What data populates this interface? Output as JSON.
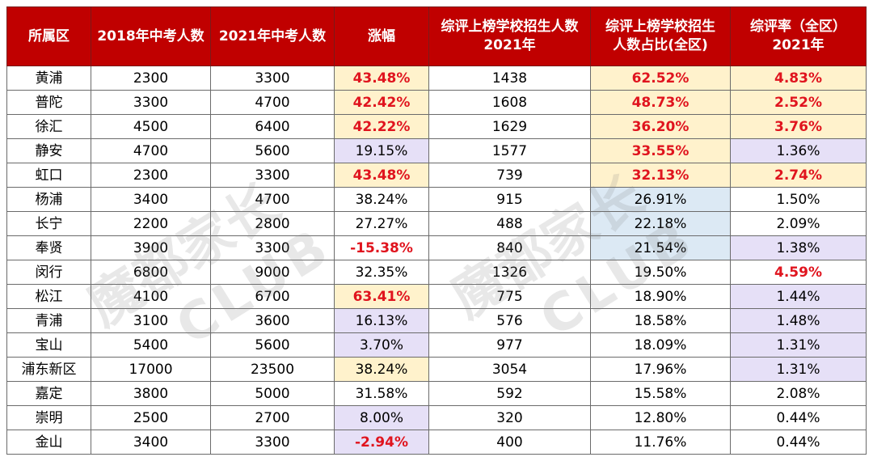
{
  "headers": [
    "所属区",
    "2018年中考人数",
    "2021年中考人数",
    "涨幅",
    "综评上榜学校招生人数\n2021年",
    "综评上榜学校招生\n人数占比(全区)",
    "综评率（全区）\n2021年"
  ],
  "rows": [
    {
      "district": "黄浦",
      "y2018": "2300",
      "y2021": "3300",
      "growth": "43.48%",
      "admit": "1438",
      "share": "62.52%",
      "rate": "4.83%"
    },
    {
      "district": "普陀",
      "y2018": "3300",
      "y2021": "4700",
      "growth": "42.42%",
      "admit": "1608",
      "share": "48.73%",
      "rate": "2.52%"
    },
    {
      "district": "徐汇",
      "y2018": "4500",
      "y2021": "6400",
      "growth": "42.22%",
      "admit": "1629",
      "share": "36.20%",
      "rate": "3.76%"
    },
    {
      "district": "静安",
      "y2018": "4700",
      "y2021": "5600",
      "growth": "19.15%",
      "admit": "1577",
      "share": "33.55%",
      "rate": "1.36%"
    },
    {
      "district": "虹口",
      "y2018": "2300",
      "y2021": "3300",
      "growth": "43.48%",
      "admit": "739",
      "share": "32.13%",
      "rate": "2.74%"
    },
    {
      "district": "杨浦",
      "y2018": "3400",
      "y2021": "4700",
      "growth": "38.24%",
      "admit": "915",
      "share": "26.91%",
      "rate": "1.50%"
    },
    {
      "district": "长宁",
      "y2018": "2200",
      "y2021": "2800",
      "growth": "27.27%",
      "admit": "488",
      "share": "22.18%",
      "rate": "2.09%"
    },
    {
      "district": "奉贤",
      "y2018": "3900",
      "y2021": "3300",
      "growth": "-15.38%",
      "admit": "840",
      "share": "21.54%",
      "rate": "1.38%"
    },
    {
      "district": "闵行",
      "y2018": "6800",
      "y2021": "9000",
      "growth": "32.35%",
      "admit": "1326",
      "share": "19.50%",
      "rate": "4.59%"
    },
    {
      "district": "松江",
      "y2018": "4100",
      "y2021": "6700",
      "growth": "63.41%",
      "admit": "775",
      "share": "18.90%",
      "rate": "1.44%"
    },
    {
      "district": "青浦",
      "y2018": "3100",
      "y2021": "3600",
      "growth": "16.13%",
      "admit": "576",
      "share": "18.58%",
      "rate": "1.48%"
    },
    {
      "district": "宝山",
      "y2018": "5400",
      "y2021": "5600",
      "growth": "3.70%",
      "admit": "977",
      "share": "18.09%",
      "rate": "1.31%"
    },
    {
      "district": "浦东新区",
      "y2018": "17000",
      "y2021": "23500",
      "growth": "38.24%",
      "admit": "3054",
      "share": "17.96%",
      "rate": "1.31%"
    },
    {
      "district": "嘉定",
      "y2018": "3800",
      "y2021": "5000",
      "growth": "31.58%",
      "admit": "592",
      "share": "15.58%",
      "rate": "2.08%"
    },
    {
      "district": "崇明",
      "y2018": "2500",
      "y2021": "2700",
      "growth": "8.00%",
      "admit": "320",
      "share": "12.80%",
      "rate": "0.44%"
    },
    {
      "district": "金山",
      "y2018": "3400",
      "y2021": "3300",
      "growth": "-2.94%",
      "admit": "400",
      "share": "11.76%",
      "rate": "0.44%"
    }
  ],
  "watermark": {
    "line1": "魔都家长",
    "line2": "CLUB"
  },
  "colors": {
    "header_bg": "#c00000",
    "highlight_text": "#e0141e",
    "cell_yellow": "#fff2cc",
    "cell_purple": "#e6e0f7",
    "cell_blue": "#dce9f4"
  }
}
